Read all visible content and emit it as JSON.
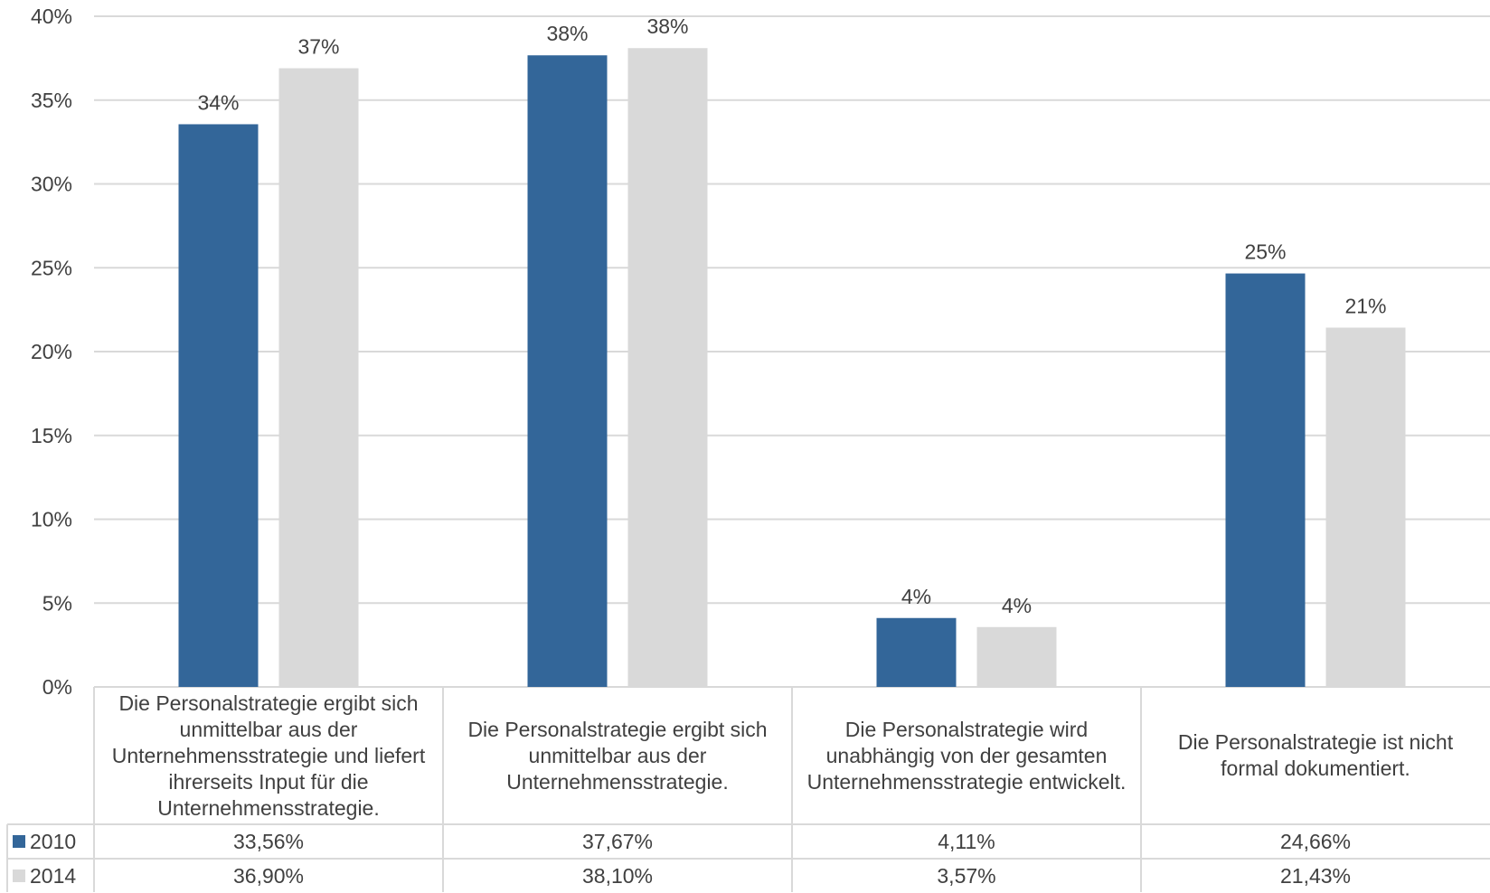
{
  "chart_data": {
    "type": "bar",
    "categories": [
      "Die Personalstrategie ergibt sich unmittelbar aus der Unternehmensstrategie und liefert ihrerseits Input für die Unternehmensstrategie.",
      "Die Personalstrategie ergibt sich unmittelbar aus der Unternehmensstrategie.",
      "Die Personalstrategie wird unabhängig von der gesamten Unternehmensstrategie entwickelt.",
      "Die Personalstrategie ist nicht formal dokumentiert."
    ],
    "series": [
      {
        "name": "2010",
        "color": "#336699",
        "values": [
          33.56,
          37.67,
          4.11,
          24.66
        ],
        "data_labels": [
          "34%",
          "38%",
          "4%",
          "25%"
        ],
        "table_values": [
          "33,56%",
          "37,67%",
          "4,11%",
          "24,66%"
        ]
      },
      {
        "name": "2014",
        "color": "#D9D9D9",
        "values": [
          36.9,
          38.1,
          3.57,
          21.43
        ],
        "data_labels": [
          "37%",
          "38%",
          "4%",
          "21%"
        ],
        "table_values": [
          "36,90%",
          "38,10%",
          "3,57%",
          "21,43%"
        ]
      }
    ],
    "ylim": [
      0,
      40
    ],
    "yticks": [
      0,
      5,
      10,
      15,
      20,
      25,
      30,
      35,
      40
    ],
    "ytick_labels": [
      "0%",
      "5%",
      "10%",
      "15%",
      "20%",
      "25%",
      "30%",
      "35%",
      "40%"
    ],
    "grid": true,
    "data_table": true,
    "legend": "data-table-left",
    "gridline_color": "#D9D9D9"
  }
}
